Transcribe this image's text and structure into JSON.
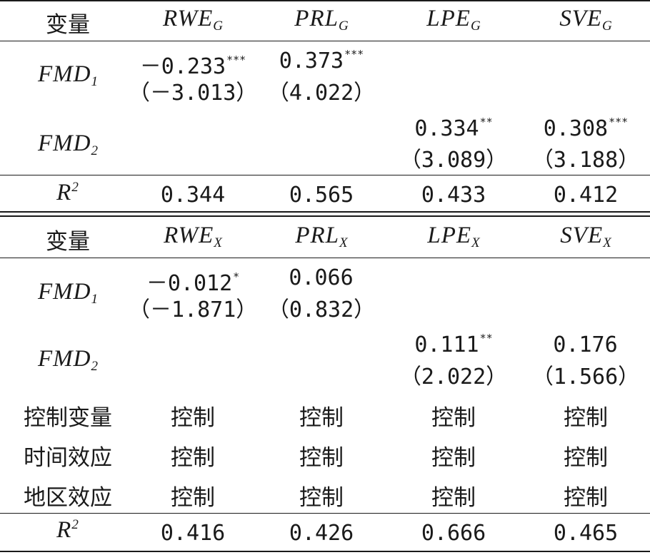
{
  "panel_g": {
    "header": {
      "var_label": "变量",
      "cols": [
        {
          "base": "RWE",
          "sub": "G"
        },
        {
          "base": "PRL",
          "sub": "G"
        },
        {
          "base": "LPE",
          "sub": "G"
        },
        {
          "base": "SVE",
          "sub": "G"
        }
      ]
    },
    "fmd1": {
      "base": "FMD",
      "sub": "1",
      "rwe_coef": "－0.233",
      "rwe_stars": "***",
      "rwe_t": "（－3.013）",
      "prl_coef": "0.373",
      "prl_stars": "***",
      "prl_t": "（4.022）"
    },
    "fmd2": {
      "base": "FMD",
      "sub": "2",
      "lpe_coef": "0.334",
      "lpe_stars": "**",
      "lpe_t": "（3.089）",
      "sve_coef": "0.308",
      "sve_stars": "***",
      "sve_t": "（3.188）"
    },
    "r2": {
      "base": "R",
      "sup": "2",
      "values": [
        "0.344",
        "0.565",
        "0.433",
        "0.412"
      ]
    }
  },
  "panel_x": {
    "header": {
      "var_label": "变量",
      "cols": [
        {
          "base": "RWE",
          "sub": "X"
        },
        {
          "base": "PRL",
          "sub": "X"
        },
        {
          "base": "LPE",
          "sub": "X"
        },
        {
          "base": "SVE",
          "sub": "X"
        }
      ]
    },
    "fmd1": {
      "base": "FMD",
      "sub": "1",
      "rwe_coef": "－0.012",
      "rwe_stars": "*",
      "rwe_t": "（－1.871）",
      "prl_coef": "0.066",
      "prl_stars": "",
      "prl_t": "（0.832）"
    },
    "fmd2": {
      "base": "FMD",
      "sub": "2",
      "lpe_coef": "0.111",
      "lpe_stars": "**",
      "lpe_t": "（2.022）",
      "sve_coef": "0.176",
      "sve_stars": "",
      "sve_t": "（1.566）"
    },
    "controls": [
      {
        "label": "控制变量",
        "values": [
          "控制",
          "控制",
          "控制",
          "控制"
        ]
      },
      {
        "label": "时间效应",
        "values": [
          "控制",
          "控制",
          "控制",
          "控制"
        ]
      },
      {
        "label": "地区效应",
        "values": [
          "控制",
          "控制",
          "控制",
          "控制"
        ]
      }
    ],
    "r2": {
      "base": "R",
      "sup": "2",
      "values": [
        "0.416",
        "0.426",
        "0.666",
        "0.465"
      ]
    }
  }
}
